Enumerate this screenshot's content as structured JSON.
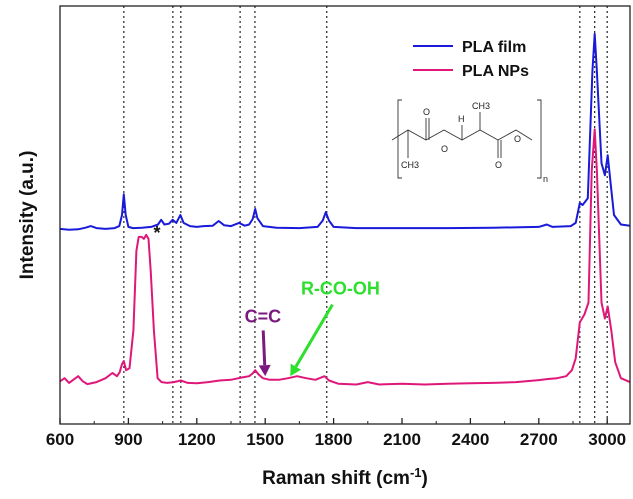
{
  "chart_data": {
    "type": "line",
    "title": "",
    "xlabel": "Raman shift (cm",
    "xlabel_sup": "-1",
    "xlabel_end": ")",
    "ylabel": "Intensity (a.u.)",
    "xlim": [
      600,
      3100
    ],
    "ylim": [
      0,
      1
    ],
    "xticks": [
      600,
      900,
      1200,
      1500,
      1800,
      2100,
      2400,
      2700,
      3000
    ],
    "xtick_labels": [
      "600",
      "900",
      "1200",
      "1500",
      "1800",
      "2100",
      "2400",
      "2700",
      "3000"
    ],
    "legend_position": "top-right",
    "grid": false,
    "vlines": [
      880,
      1095,
      1130,
      1390,
      1455,
      1770,
      2880,
      2945,
      3000
    ],
    "series": [
      {
        "name": "PLA film",
        "color": "#1a1adb",
        "points": [
          [
            600,
            0.455
          ],
          [
            640,
            0.453
          ],
          [
            680,
            0.454
          ],
          [
            712,
            0.458
          ],
          [
            735,
            0.462
          ],
          [
            760,
            0.457
          ],
          [
            800,
            0.455
          ],
          [
            840,
            0.457
          ],
          [
            860,
            0.462
          ],
          [
            872,
            0.49
          ],
          [
            880,
            0.542
          ],
          [
            888,
            0.49
          ],
          [
            900,
            0.46
          ],
          [
            920,
            0.457
          ],
          [
            960,
            0.458
          ],
          [
            1000,
            0.46
          ],
          [
            1030,
            0.466
          ],
          [
            1044,
            0.478
          ],
          [
            1058,
            0.466
          ],
          [
            1078,
            0.468
          ],
          [
            1094,
            0.478
          ],
          [
            1110,
            0.47
          ],
          [
            1128,
            0.49
          ],
          [
            1142,
            0.47
          ],
          [
            1170,
            0.462
          ],
          [
            1200,
            0.46
          ],
          [
            1230,
            0.462
          ],
          [
            1270,
            0.463
          ],
          [
            1296,
            0.475
          ],
          [
            1320,
            0.464
          ],
          [
            1350,
            0.462
          ],
          [
            1385,
            0.47
          ],
          [
            1410,
            0.463
          ],
          [
            1430,
            0.466
          ],
          [
            1445,
            0.48
          ],
          [
            1456,
            0.505
          ],
          [
            1466,
            0.482
          ],
          [
            1490,
            0.462
          ],
          [
            1550,
            0.458
          ],
          [
            1650,
            0.457
          ],
          [
            1730,
            0.46
          ],
          [
            1752,
            0.476
          ],
          [
            1766,
            0.497
          ],
          [
            1780,
            0.476
          ],
          [
            1800,
            0.46
          ],
          [
            1900,
            0.457
          ],
          [
            2100,
            0.457
          ],
          [
            2300,
            0.457
          ],
          [
            2500,
            0.458
          ],
          [
            2700,
            0.46
          ],
          [
            2735,
            0.466
          ],
          [
            2760,
            0.46
          ],
          [
            2840,
            0.462
          ],
          [
            2862,
            0.47
          ],
          [
            2880,
            0.52
          ],
          [
            2892,
            0.515
          ],
          [
            2915,
            0.532
          ],
          [
            2935,
            0.85
          ],
          [
            2945,
            0.945
          ],
          [
            2955,
            0.85
          ],
          [
            2975,
            0.62
          ],
          [
            2990,
            0.59
          ],
          [
            3002,
            0.64
          ],
          [
            3015,
            0.57
          ],
          [
            3030,
            0.49
          ],
          [
            3060,
            0.466
          ],
          [
            3100,
            0.463
          ]
        ]
      },
      {
        "name": "PLA NPs",
        "color": "#e0177a",
        "points": [
          [
            600,
            0.072
          ],
          [
            620,
            0.08
          ],
          [
            640,
            0.068
          ],
          [
            680,
            0.085
          ],
          [
            700,
            0.072
          ],
          [
            720,
            0.065
          ],
          [
            760,
            0.07
          ],
          [
            800,
            0.08
          ],
          [
            830,
            0.093
          ],
          [
            850,
            0.085
          ],
          [
            862,
            0.095
          ],
          [
            872,
            0.115
          ],
          [
            880,
            0.123
          ],
          [
            890,
            0.1
          ],
          [
            905,
            0.105
          ],
          [
            922,
            0.2
          ],
          [
            935,
            0.4
          ],
          [
            945,
            0.435
          ],
          [
            958,
            0.435
          ],
          [
            968,
            0.43
          ],
          [
            978,
            0.44
          ],
          [
            988,
            0.43
          ],
          [
            998,
            0.35
          ],
          [
            1012,
            0.2
          ],
          [
            1028,
            0.08
          ],
          [
            1045,
            0.07
          ],
          [
            1070,
            0.068
          ],
          [
            1100,
            0.07
          ],
          [
            1130,
            0.074
          ],
          [
            1160,
            0.068
          ],
          [
            1200,
            0.067
          ],
          [
            1250,
            0.07
          ],
          [
            1300,
            0.074
          ],
          [
            1350,
            0.076
          ],
          [
            1400,
            0.082
          ],
          [
            1430,
            0.085
          ],
          [
            1445,
            0.092
          ],
          [
            1456,
            0.1
          ],
          [
            1470,
            0.09
          ],
          [
            1490,
            0.08
          ],
          [
            1520,
            0.076
          ],
          [
            1560,
            0.076
          ],
          [
            1600,
            0.08
          ],
          [
            1640,
            0.085
          ],
          [
            1680,
            0.08
          ],
          [
            1720,
            0.076
          ],
          [
            1760,
            0.085
          ],
          [
            1780,
            0.074
          ],
          [
            1820,
            0.066
          ],
          [
            1900,
            0.064
          ],
          [
            1950,
            0.07
          ],
          [
            2000,
            0.064
          ],
          [
            2100,
            0.066
          ],
          [
            2200,
            0.064
          ],
          [
            2300,
            0.066
          ],
          [
            2400,
            0.067
          ],
          [
            2500,
            0.068
          ],
          [
            2600,
            0.07
          ],
          [
            2700,
            0.075
          ],
          [
            2740,
            0.078
          ],
          [
            2780,
            0.08
          ],
          [
            2820,
            0.085
          ],
          [
            2845,
            0.1
          ],
          [
            2862,
            0.13
          ],
          [
            2880,
            0.22
          ],
          [
            2900,
            0.24
          ],
          [
            2918,
            0.27
          ],
          [
            2932,
            0.6
          ],
          [
            2945,
            0.705
          ],
          [
            2955,
            0.6
          ],
          [
            2975,
            0.27
          ],
          [
            2990,
            0.23
          ],
          [
            3002,
            0.26
          ],
          [
            3018,
            0.2
          ],
          [
            3035,
            0.12
          ],
          [
            3060,
            0.08
          ],
          [
            3100,
            0.07
          ]
        ]
      }
    ],
    "annotations": [
      {
        "text": "*",
        "x": 1010,
        "y": 0.43,
        "color": "#111111"
      },
      {
        "text": "C=C",
        "x": 1490,
        "y": 0.22,
        "color": "#7a1a7f",
        "arrow_to": [
          1500,
          0.085
        ]
      },
      {
        "text": "R-CO-OH",
        "x": 1830,
        "y": 0.29,
        "color": "#2ce02c",
        "arrow_to": [
          1610,
          0.085
        ]
      }
    ]
  },
  "inset": {
    "label_h": "H",
    "label_o1": "O",
    "label_o2": "O",
    "label_o3": "O",
    "label_o4": "O",
    "label_ch3_a": "CH3",
    "label_ch3_b": "CH3",
    "label_n": "n"
  }
}
